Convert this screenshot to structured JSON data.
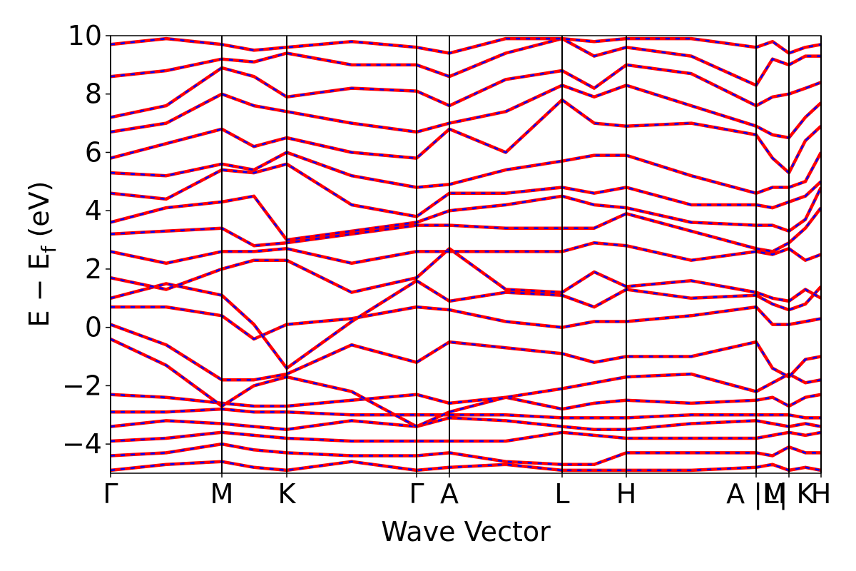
{
  "chart_data": {
    "type": "line",
    "xlabel": "Wave Vector",
    "ylabel": [
      "E − E",
      "f",
      " (eV)"
    ],
    "line_color": "#ff0000",
    "dash_color": "#0000ff",
    "xlim": [
      0,
      9.96
    ],
    "ylim": [
      -5,
      10
    ],
    "xticks": [
      {
        "value": 0,
        "label": "Γ"
      },
      {
        "value": 1.56,
        "label": "M"
      },
      {
        "value": 2.47,
        "label": "K"
      },
      {
        "value": 4.29,
        "label": "Γ"
      },
      {
        "value": 4.75,
        "label": "A"
      },
      {
        "value": 6.33,
        "label": "L"
      },
      {
        "value": 7.23,
        "label": "H"
      },
      {
        "value": 9.05,
        "label": "A |M"
      },
      {
        "value": 9.51,
        "label": "L| K"
      },
      {
        "value": 9.96,
        "label": "H"
      }
    ],
    "yticks": [
      {
        "value": -4,
        "label": "−4"
      },
      {
        "value": -2,
        "label": "−2"
      },
      0,
      2,
      4,
      6,
      8,
      10
    ],
    "grid": "x",
    "x": [
      0,
      0.78,
      1.56,
      2.01,
      2.47,
      3.38,
      4.29,
      4.75,
      5.54,
      6.33,
      6.78,
      7.23,
      8.14,
      9.05,
      9.28,
      9.51,
      9.74,
      9.96
    ],
    "series": [
      {
        "values": [
          -4.9,
          -4.7,
          -4.6,
          -4.8,
          -4.9,
          -4.6,
          -4.9,
          -4.8,
          -4.7,
          -4.9,
          -4.9,
          -4.9,
          -4.9,
          -4.8,
          -4.7,
          -4.9,
          -4.8,
          -4.9
        ]
      },
      {
        "values": [
          -4.4,
          -4.3,
          -4.0,
          -4.2,
          -4.3,
          -4.4,
          -4.4,
          -4.3,
          -4.6,
          -4.7,
          -4.7,
          -4.3,
          -4.3,
          -4.3,
          -4.4,
          -4.1,
          -4.3,
          -4.3
        ]
      },
      {
        "values": [
          -3.9,
          -3.8,
          -3.6,
          -3.7,
          -3.8,
          -3.9,
          -3.9,
          -3.9,
          -3.9,
          -3.6,
          -3.7,
          -3.8,
          -3.8,
          -3.8,
          -3.7,
          -3.6,
          -3.7,
          -3.6
        ]
      },
      {
        "values": [
          -3.4,
          -3.2,
          -3.3,
          -3.4,
          -3.5,
          -3.2,
          -3.4,
          -3.1,
          -3.2,
          -3.4,
          -3.5,
          -3.5,
          -3.3,
          -3.2,
          -3.3,
          -3.4,
          -3.3,
          -3.4
        ]
      },
      {
        "values": [
          -2.9,
          -2.9,
          -2.8,
          -2.9,
          -2.9,
          -3.0,
          -3.0,
          -3.0,
          -3.0,
          -3.1,
          -3.1,
          -3.1,
          -3.0,
          -3.0,
          -3.0,
          -3.0,
          -3.1,
          -3.1
        ]
      },
      {
        "values": [
          -2.3,
          -2.4,
          -2.6,
          -2.7,
          -2.7,
          -2.5,
          -2.3,
          -2.6,
          -2.4,
          -2.8,
          -2.6,
          -2.5,
          -2.6,
          -2.5,
          -2.4,
          -2.7,
          -2.4,
          -2.3
        ]
      },
      {
        "values": [
          -0.4,
          -1.3,
          -2.7,
          -2.0,
          -1.7,
          -2.2,
          -3.4,
          -2.9,
          -2.4,
          -2.1,
          -1.9,
          -1.7,
          -1.6,
          -2.2,
          -1.9,
          -1.6,
          -1.9,
          -1.8
        ]
      },
      {
        "values": [
          0.1,
          -0.6,
          -1.8,
          -1.8,
          -1.6,
          -0.6,
          -1.2,
          -0.5,
          -0.7,
          -0.9,
          -1.2,
          -1.0,
          -1.0,
          -0.5,
          -1.4,
          -1.7,
          -1.1,
          -1.0
        ]
      },
      {
        "values": [
          0.7,
          0.7,
          0.4,
          -0.4,
          0.1,
          0.3,
          0.7,
          0.6,
          0.2,
          0,
          0.2,
          0.2,
          0.4,
          0.7,
          0.1,
          0.1,
          0.2,
          0.3
        ]
      },
      {
        "values": [
          1.0,
          1.5,
          1.1,
          0.1,
          -1.4,
          0.2,
          1.6,
          0.9,
          1.2,
          1.1,
          0.7,
          1.3,
          1.0,
          1.1,
          0.8,
          0.6,
          0.8,
          1.4
        ]
      },
      {
        "values": [
          1.7,
          1.3,
          2.0,
          2.3,
          2.3,
          1.2,
          1.7,
          2.7,
          1.3,
          1.2,
          1.9,
          1.4,
          1.6,
          1.2,
          1.0,
          0.9,
          1.3,
          1.0
        ]
      },
      {
        "values": [
          2.6,
          2.2,
          2.6,
          2.6,
          2.7,
          2.2,
          2.6,
          2.6,
          2.6,
          2.6,
          2.9,
          2.8,
          2.3,
          2.6,
          2.5,
          2.7,
          2.3,
          2.5
        ]
      },
      {
        "values": [
          3.2,
          3.3,
          3.4,
          2.8,
          2.9,
          3.2,
          3.5,
          3.5,
          3.4,
          3.4,
          3.4,
          3.9,
          3.3,
          2.7,
          2.6,
          2.9,
          3.4,
          4.1
        ]
      },
      {
        "values": [
          3.6,
          4.1,
          4.3,
          4.5,
          3.0,
          3.3,
          3.6,
          4.0,
          4.2,
          4.5,
          4.2,
          4.1,
          3.6,
          3.5,
          3.5,
          3.3,
          3.7,
          4.8
        ]
      },
      {
        "values": [
          4.6,
          4.4,
          5.4,
          5.3,
          5.6,
          4.2,
          3.8,
          4.6,
          4.6,
          4.8,
          4.6,
          4.8,
          4.2,
          4.2,
          4.1,
          4.3,
          4.5,
          5.0
        ]
      },
      {
        "values": [
          5.3,
          5.2,
          5.6,
          5.4,
          6.0,
          5.2,
          4.8,
          4.9,
          5.4,
          5.7,
          5.9,
          5.9,
          5.2,
          4.6,
          4.8,
          4.8,
          5.0,
          6.0
        ]
      },
      {
        "values": [
          5.8,
          6.3,
          6.8,
          6.2,
          6.5,
          6.0,
          5.8,
          6.8,
          6.0,
          7.8,
          7.0,
          6.9,
          7.0,
          6.6,
          5.8,
          5.3,
          6.4,
          6.9
        ]
      },
      {
        "values": [
          6.7,
          7.0,
          8.0,
          7.6,
          7.4,
          7.0,
          6.7,
          7.0,
          7.4,
          8.3,
          7.9,
          8.3,
          7.6,
          6.9,
          6.6,
          6.5,
          7.2,
          7.7
        ]
      },
      {
        "values": [
          7.2,
          7.6,
          8.9,
          8.6,
          7.9,
          8.2,
          8.1,
          7.6,
          8.5,
          8.8,
          8.2,
          9.0,
          8.7,
          7.6,
          7.9,
          8.0,
          8.2,
          8.4
        ]
      },
      {
        "values": [
          8.6,
          8.8,
          9.2,
          9.1,
          9.4,
          9.0,
          9.0,
          8.6,
          9.4,
          9.9,
          9.3,
          9.6,
          9.3,
          8.3,
          9.2,
          9.0,
          9.3,
          9.3
        ]
      },
      {
        "values": [
          9.7,
          9.9,
          9.7,
          9.5,
          9.6,
          9.8,
          9.6,
          9.4,
          9.9,
          9.9,
          9.8,
          9.9,
          9.9,
          9.6,
          9.8,
          9.4,
          9.6,
          9.7
        ]
      }
    ]
  }
}
